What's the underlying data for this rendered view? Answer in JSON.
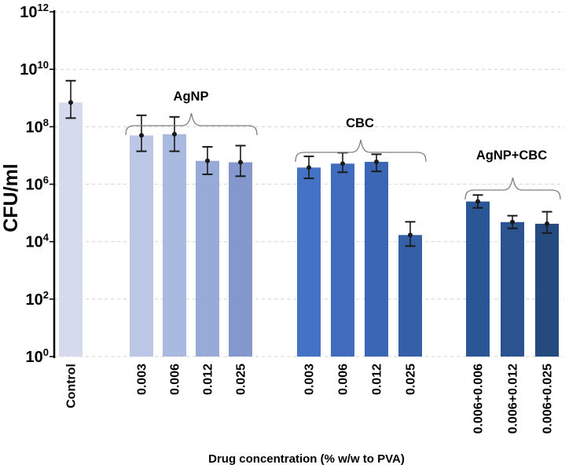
{
  "chart_data": {
    "type": "bar",
    "title": "",
    "ylabel": "CFU/ml",
    "xlabel": "Drug concentration (% w/w to PVA)",
    "y_scale": "log10",
    "ylim": [
      1,
      1000000000000.0
    ],
    "y_tick_base": "10",
    "y_tick_exponents": [
      12,
      10,
      8,
      6,
      4,
      2,
      0
    ],
    "grid": "horizontal dashed",
    "legend": "none",
    "error_bars": true,
    "marker": "black dot at mean",
    "groups": [
      {
        "label": "Control",
        "brace": false,
        "bars": [
          {
            "x_label": "Control",
            "value": 700000000.0,
            "err_low": 200000000.0,
            "err_high": 4000000000.0,
            "color": "#d5daed"
          }
        ]
      },
      {
        "label": "AgNP",
        "brace": true,
        "bars": [
          {
            "x_label": "0.003",
            "value": 50000000.0,
            "err_low": 14000000.0,
            "err_high": 250000000.0,
            "color": "#bcc7e5"
          },
          {
            "x_label": "0.006",
            "value": 55000000.0,
            "err_low": 14000000.0,
            "err_high": 220000000.0,
            "color": "#aab9df"
          },
          {
            "x_label": "0.012",
            "value": 6500000.0,
            "err_low": 2200000.0,
            "err_high": 20000000.0,
            "color": "#97aad8"
          },
          {
            "x_label": "0.025",
            "value": 5800000.0,
            "err_low": 1900000.0,
            "err_high": 22000000.0,
            "color": "#8598cd"
          }
        ]
      },
      {
        "label": "CBC",
        "brace": true,
        "bars": [
          {
            "x_label": "0.003",
            "value": 3800000.0,
            "err_low": 1600000.0,
            "err_high": 9300000.0,
            "color": "#4472c4"
          },
          {
            "x_label": "0.006",
            "value": 5200000.0,
            "err_low": 2600000.0,
            "err_high": 12500000.0,
            "color": "#3f6cbd"
          },
          {
            "x_label": "0.012",
            "value": 6000000.0,
            "err_low": 2800000.0,
            "err_high": 11000000.0,
            "color": "#3a66b3"
          },
          {
            "x_label": "0.025",
            "value": 17000.0,
            "err_low": 7000.0,
            "err_high": 49000.0,
            "color": "#3560a8"
          }
        ]
      },
      {
        "label": "AgNP+CBC",
        "brace": true,
        "bars": [
          {
            "x_label": "0.006+0.006",
            "value": 250000.0,
            "err_low": 150000.0,
            "err_high": 420000.0,
            "color": "#2b5695"
          },
          {
            "x_label": "0.006+0.012",
            "value": 48000.0,
            "err_low": 29000.0,
            "err_high": 80000.0,
            "color": "#2a538f"
          },
          {
            "x_label": "0.006+0.025",
            "value": 42000.0,
            "err_low": 20000.0,
            "err_high": 110000.0,
            "color": "#254a80"
          }
        ]
      }
    ],
    "colors": {
      "axis": "#000000",
      "grid": "#d9d9d9",
      "error_bar": "#1a1a1a",
      "brace": "#7f7f7f",
      "background": "#ffffff"
    }
  }
}
